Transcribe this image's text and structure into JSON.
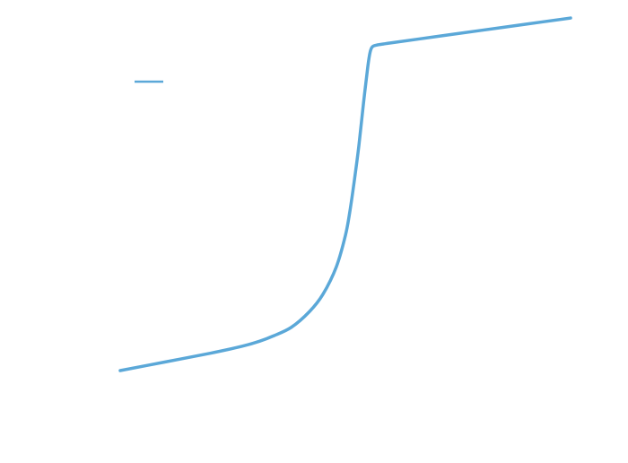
{
  "chart_data": {
    "type": "line",
    "title": "",
    "xlabel": "",
    "ylabel": "",
    "grid": false,
    "legend": {
      "placement": "top-left",
      "show_text": false
    },
    "xlim": [
      0,
      100
    ],
    "ylim": [
      0,
      100
    ],
    "series": [
      {
        "color": "#5ba8d8",
        "x": [
          0,
          10,
          20,
          27,
          31,
          34,
          38,
          42,
          45,
          48,
          50,
          51,
          52,
          53,
          54,
          55,
          55.5,
          56,
          57,
          58.5,
          60,
          70,
          80,
          90,
          100
        ],
        "y": [
          0,
          2.5,
          5,
          7,
          8.5,
          10,
          12.5,
          17,
          22,
          30,
          39,
          46,
          55,
          65,
          77,
          88,
          92,
          93.5,
          94,
          94.3,
          94.6,
          96.4,
          98.2,
          100,
          101.8
        ]
      }
    ]
  }
}
